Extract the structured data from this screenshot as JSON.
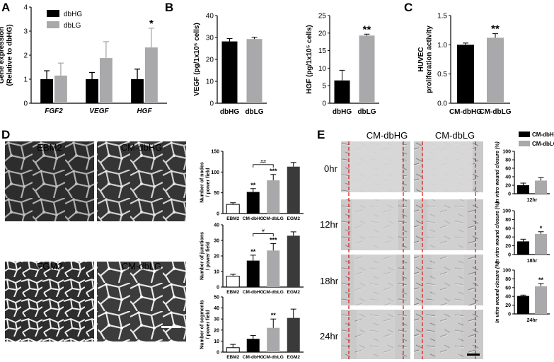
{
  "panels": {
    "A": "A",
    "B": "B",
    "C": "C",
    "D": "D",
    "E": "E"
  },
  "colors": {
    "black": "#000000",
    "gray": "#a9a9ab",
    "dark_gray": "#3a3a3a",
    "white": "#ffffff",
    "red_line": "#e02020"
  },
  "legend": {
    "dbHG": "dbHG",
    "dbLG": "dbLG",
    "CM_dbHG": "CM-dbHG",
    "CM_dbLG": "CM-dbLG"
  },
  "image_labels": {
    "D": [
      "EBM2",
      "CM-dbHG",
      "EGM2",
      "CM-dbLG"
    ],
    "E_columns": [
      "CM-dbHG",
      "CM-dbLG"
    ],
    "E_rows": [
      "0hr",
      "12hr",
      "18hr",
      "24hr"
    ]
  },
  "chart_data": [
    {
      "id": "A",
      "type": "bar",
      "categories": [
        "FGF2",
        "VEGF",
        "HGF"
      ],
      "series": [
        {
          "name": "dbHG",
          "values": [
            1.0,
            1.0,
            1.0
          ],
          "errors": [
            0.35,
            0.28,
            0.42
          ]
        },
        {
          "name": "dbLG",
          "values": [
            1.15,
            1.88,
            2.32
          ],
          "errors": [
            0.52,
            0.68,
            0.8
          ]
        }
      ],
      "ylabel": "Gene expression (Relative to dbHG)",
      "ylim": [
        0,
        4
      ],
      "yticks": [
        0,
        1,
        2,
        3,
        4
      ],
      "annotations": [
        {
          "category": "HGF",
          "series": "dbLG",
          "text": "*"
        }
      ]
    },
    {
      "id": "B1",
      "type": "bar",
      "categories": [
        "dbHG",
        "dbLG"
      ],
      "values": [
        28.2,
        29.3
      ],
      "errors": [
        1.3,
        0.8
      ],
      "ylabel": "VEGF (pg/1x10⁵ cells)",
      "ylim": [
        0,
        40
      ],
      "yticks": [
        0,
        10,
        20,
        30,
        40
      ]
    },
    {
      "id": "B2",
      "type": "bar",
      "categories": [
        "dbHG",
        "dbLG"
      ],
      "values": [
        6.5,
        19.3
      ],
      "errors": [
        2.9,
        0.4
      ],
      "ylabel": "HGF (pg/1x10⁵ cells)",
      "ylim": [
        0,
        25
      ],
      "yticks": [
        0,
        5,
        10,
        15,
        20,
        25
      ],
      "annotations": [
        {
          "category": "dbLG",
          "text": "**"
        }
      ]
    },
    {
      "id": "C",
      "type": "bar",
      "categories": [
        "CM-dbHG",
        "CM-dbLG"
      ],
      "values": [
        1.0,
        1.12
      ],
      "errors": [
        0.03,
        0.07
      ],
      "ylabel": "HUVEC proliferation activity",
      "ylim": [
        0,
        1.5
      ],
      "yticks": [
        "0.0",
        "0.5",
        "1.0",
        "1.5"
      ],
      "annotations": [
        {
          "category": "CM-dbLG",
          "text": "**"
        }
      ]
    },
    {
      "id": "D1",
      "type": "bar",
      "categories": [
        "EBM2",
        "CM-dbHG",
        "CM-dbLG",
        "EGM2"
      ],
      "values": [
        22,
        52,
        80,
        113
      ],
      "errors": [
        4,
        8,
        14,
        10
      ],
      "ylabel": "Number of nodes / power field",
      "ylim": [
        0,
        150
      ],
      "yticks": [
        0,
        50,
        100,
        150
      ],
      "annotations": [
        {
          "category": "CM-dbHG",
          "text": "**"
        },
        {
          "category": "CM-dbLG",
          "text": "***"
        }
      ],
      "bracket": {
        "from": "CM-dbHG",
        "to": "CM-dbLG",
        "text": "##"
      }
    },
    {
      "id": "D2",
      "type": "bar",
      "categories": [
        "EBM2",
        "CM-dbHG",
        "CM-dbLG",
        "EGM2"
      ],
      "values": [
        7,
        17,
        23.5,
        33
      ],
      "errors": [
        1.2,
        3.5,
        4.5,
        2.5
      ],
      "ylabel": "Number of junctions / power field",
      "ylim": [
        0,
        40
      ],
      "yticks": [
        0,
        10,
        20,
        30,
        40
      ],
      "annotations": [
        {
          "category": "CM-dbHG",
          "text": "**"
        },
        {
          "category": "CM-dbLG",
          "text": "***"
        }
      ],
      "bracket": {
        "from": "CM-dbHG",
        "to": "CM-dbLG",
        "text": "#"
      }
    },
    {
      "id": "D3",
      "type": "bar",
      "categories": [
        "EBM2",
        "CM-dbHG",
        "CM-dbLG",
        "EGM2"
      ],
      "values": [
        4,
        12,
        22,
        31
      ],
      "errors": [
        3,
        3,
        8,
        8
      ],
      "ylabel": "Number of segments / power field",
      "ylim": [
        0,
        50
      ],
      "yticks": [
        0,
        10,
        20,
        30,
        40,
        50
      ],
      "annotations": [
        {
          "category": "CM-dbLG",
          "text": "**"
        }
      ]
    },
    {
      "id": "E1",
      "type": "bar",
      "xlabel": "12hr",
      "categories": [
        "CM-dbHG",
        "CM-dbLG"
      ],
      "values": [
        20,
        31
      ],
      "errors": [
        5,
        7
      ],
      "ylabel": "In vitro wound closure (%)",
      "ylim": [
        0,
        100
      ],
      "yticks": [
        0,
        20,
        40,
        60,
        80,
        100
      ]
    },
    {
      "id": "E2",
      "type": "bar",
      "xlabel": "18hr",
      "categories": [
        "CM-dbHG",
        "CM-dbLG"
      ],
      "values": [
        30,
        47
      ],
      "errors": [
        5,
        5
      ],
      "ylabel": "In vitro wound closure (%)",
      "ylim": [
        0,
        100
      ],
      "yticks": [
        0,
        20,
        40,
        60,
        80,
        100
      ],
      "annotations": [
        {
          "category": "CM-dbLG",
          "text": "*"
        }
      ]
    },
    {
      "id": "E3",
      "type": "bar",
      "xlabel": "24hr",
      "categories": [
        "CM-dbHG",
        "CM-dbLG"
      ],
      "values": [
        41,
        63
      ],
      "errors": [
        2,
        6
      ],
      "ylabel": "In vitro wound closure (%)",
      "ylim": [
        0,
        100
      ],
      "yticks": [
        0,
        20,
        40,
        60,
        80,
        100
      ],
      "annotations": [
        {
          "category": "CM-dbLG",
          "text": "**"
        }
      ]
    }
  ]
}
